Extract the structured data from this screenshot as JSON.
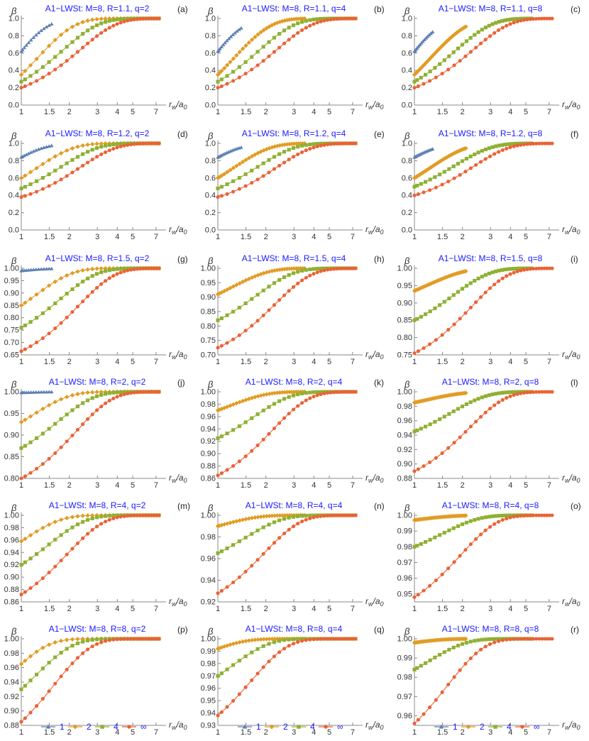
{
  "figure": {
    "x_axis_label": "r_w/a_0",
    "y_axis_label": "β",
    "legend": {
      "placement": "bottom",
      "entries": [
        {
          "label": "1",
          "color": "#5e81b5",
          "marker": "triangle"
        },
        {
          "label": "2",
          "color": "#e19c24",
          "marker": "diamond"
        },
        {
          "label": "4",
          "color": "#8fb032",
          "marker": "square"
        },
        {
          "label": "∞",
          "color": "#eb6235",
          "marker": "circle"
        }
      ]
    }
  },
  "chart_data": [
    {
      "type": "line",
      "panel": "(a)",
      "title": "A1−LWSt: M=8, R=1.1, q=2",
      "R": 1.1,
      "q": 2,
      "xscale": "log",
      "x_ticks": [
        1,
        1.5,
        2,
        3,
        4,
        5,
        7
      ],
      "xlim": [
        1,
        7.3
      ],
      "ylim": [
        0,
        1
      ],
      "y_ticks": [
        "0.0",
        "0.2",
        "0.4",
        "0.6",
        "0.8",
        "1.0"
      ]
    },
    {
      "type": "line",
      "panel": "(b)",
      "title": "A1−LWSt: M=8, R=1.1, q=4",
      "R": 1.1,
      "q": 4,
      "xscale": "log",
      "x_ticks": [
        1,
        1.5,
        2,
        3,
        4,
        5,
        7
      ],
      "xlim": [
        1,
        7.3
      ],
      "ylim": [
        0,
        1
      ],
      "y_ticks": [
        "0.0",
        "0.2",
        "0.4",
        "0.6",
        "0.8",
        "1.0"
      ]
    },
    {
      "type": "line",
      "panel": "(c)",
      "title": "A1−LWSt: M=8, R=1.1, q=8",
      "R": 1.1,
      "q": 8,
      "xscale": "log",
      "x_ticks": [
        1,
        1.5,
        2,
        3,
        4,
        5,
        7
      ],
      "xlim": [
        1,
        7.3
      ],
      "ylim": [
        0,
        1
      ],
      "y_ticks": [
        "0.0",
        "0.2",
        "0.4",
        "0.6",
        "0.8",
        "1.0"
      ]
    },
    {
      "type": "line",
      "panel": "(d)",
      "title": "A1−LWSt: M=8, R=1.2, q=2",
      "R": 1.2,
      "q": 2,
      "xscale": "log",
      "x_ticks": [
        1,
        1.5,
        2,
        3,
        4,
        5,
        7
      ],
      "xlim": [
        1,
        7.3
      ],
      "ylim": [
        0,
        1
      ],
      "y_ticks": [
        "0.0",
        "0.2",
        "0.4",
        "0.6",
        "0.8",
        "1.0"
      ]
    },
    {
      "type": "line",
      "panel": "(e)",
      "title": "A1−LWSt: M=8, R=1.2, q=4",
      "R": 1.2,
      "q": 4,
      "xscale": "log",
      "x_ticks": [
        1,
        1.5,
        2,
        3,
        4,
        5,
        7
      ],
      "xlim": [
        1,
        7.3
      ],
      "ylim": [
        0,
        1
      ],
      "y_ticks": [
        "0.0",
        "0.2",
        "0.4",
        "0.6",
        "0.8",
        "1.0"
      ]
    },
    {
      "type": "line",
      "panel": "(f)",
      "title": "A1−LWSt: M=8, R=1.2, q=8",
      "R": 1.2,
      "q": 8,
      "xscale": "log",
      "x_ticks": [
        1,
        1.5,
        2,
        3,
        4,
        5,
        7
      ],
      "xlim": [
        1,
        7.3
      ],
      "ylim": [
        0,
        1
      ],
      "y_ticks": [
        "0.0",
        "0.2",
        "0.4",
        "0.6",
        "0.8",
        "1.0"
      ]
    },
    {
      "type": "line",
      "panel": "(g)",
      "title": "A1−LWSt: M=8, R=1.5, q=2",
      "R": 1.5,
      "q": 2,
      "xscale": "log",
      "x_ticks": [
        1,
        1.5,
        2,
        3,
        4,
        5,
        7
      ],
      "xlim": [
        1,
        7.3
      ],
      "ylim": [
        0.65,
        1
      ],
      "y_ticks": [
        "0.65",
        "0.70",
        "0.75",
        "0.80",
        "0.85",
        "0.90",
        "0.95",
        "1.00"
      ]
    },
    {
      "type": "line",
      "panel": "(h)",
      "title": "A1−LWSt: M=8, R=1.5, q=4",
      "R": 1.5,
      "q": 4,
      "xscale": "log",
      "x_ticks": [
        1,
        1.5,
        2,
        3,
        4,
        5,
        7
      ],
      "xlim": [
        1,
        7.3
      ],
      "ylim": [
        0.7,
        1
      ],
      "y_ticks": [
        "0.70",
        "0.75",
        "0.80",
        "0.85",
        "0.90",
        "0.95",
        "1.00"
      ]
    },
    {
      "type": "line",
      "panel": "(i)",
      "title": "A1−LWSt: M=8, R=1.5, q=8",
      "R": 1.5,
      "q": 8,
      "xscale": "log",
      "x_ticks": [
        1,
        1.5,
        2,
        3,
        4,
        5,
        7
      ],
      "xlim": [
        1,
        7.3
      ],
      "ylim": [
        0.75,
        1
      ],
      "y_ticks": [
        "0.75",
        "0.80",
        "0.85",
        "0.90",
        "0.95",
        "1.00"
      ]
    },
    {
      "type": "line",
      "panel": "(j)",
      "title": "A1−LWSt: M=8, R=2, q=2",
      "R": 2,
      "q": 2,
      "xscale": "log",
      "x_ticks": [
        1,
        1.5,
        2,
        3,
        4,
        5,
        7
      ],
      "xlim": [
        1,
        7.3
      ],
      "ylim": [
        0.8,
        1
      ],
      "y_ticks": [
        "0.80",
        "0.85",
        "0.90",
        "0.95",
        "1.00"
      ]
    },
    {
      "type": "line",
      "panel": "(k)",
      "title": "A1−LWSt: M=8, R=2, q=4",
      "R": 2,
      "q": 4,
      "xscale": "log",
      "x_ticks": [
        1,
        1.5,
        2,
        3,
        4,
        5,
        7
      ],
      "xlim": [
        1,
        7.3
      ],
      "ylim": [
        0.86,
        1
      ],
      "y_ticks": [
        "0.86",
        "0.88",
        "0.90",
        "0.92",
        "0.94",
        "0.96",
        "0.98",
        "1.00"
      ]
    },
    {
      "type": "line",
      "panel": "(l)",
      "title": "A1−LWSt: M=8, R=2, q=8",
      "R": 2,
      "q": 8,
      "xscale": "log",
      "x_ticks": [
        1,
        1.5,
        2,
        3,
        4,
        5,
        7
      ],
      "xlim": [
        1,
        7.3
      ],
      "ylim": [
        0.88,
        1
      ],
      "y_ticks": [
        "0.88",
        "0.90",
        "0.92",
        "0.94",
        "0.96",
        "0.98",
        "1.00"
      ]
    },
    {
      "type": "line",
      "panel": "(m)",
      "title": "A1−LWSt: M=8, R=4, q=2",
      "R": 4,
      "q": 2,
      "xscale": "log",
      "x_ticks": [
        1,
        1.5,
        2,
        3,
        4,
        5,
        7
      ],
      "xlim": [
        1,
        7.3
      ],
      "ylim": [
        0.86,
        1
      ],
      "y_ticks": [
        "0.86",
        "0.88",
        "0.90",
        "0.92",
        "0.94",
        "0.96",
        "0.98",
        "1.00"
      ]
    },
    {
      "type": "line",
      "panel": "(n)",
      "title": "A1−LWSt: M=8, R=4, q=4",
      "R": 4,
      "q": 4,
      "xscale": "log",
      "x_ticks": [
        1,
        1.5,
        2,
        3,
        4,
        5,
        7
      ],
      "xlim": [
        1,
        7.3
      ],
      "ylim": [
        0.92,
        1
      ],
      "y_ticks": [
        "0.92",
        "0.94",
        "0.96",
        "0.98",
        "1.00"
      ]
    },
    {
      "type": "line",
      "panel": "(o)",
      "title": "A1−LWSt: M=8, R=4, q=8",
      "R": 4,
      "q": 8,
      "xscale": "log",
      "x_ticks": [
        1,
        1.5,
        2,
        3,
        4,
        5,
        7
      ],
      "xlim": [
        1,
        7.3
      ],
      "ylim": [
        0.945,
        1
      ],
      "y_ticks": [
        "0.95",
        "0.96",
        "0.97",
        "0.98",
        "0.99",
        "1.00"
      ]
    },
    {
      "type": "line",
      "panel": "(p)",
      "title": "A1−LWSt: M=8, R=8, q=2",
      "R": 8,
      "q": 2,
      "xscale": "log",
      "x_ticks": [
        1,
        1.5,
        2,
        3,
        4,
        5,
        7
      ],
      "xlim": [
        1,
        7.3
      ],
      "ylim": [
        0.88,
        1
      ],
      "y_ticks": [
        "0.88",
        "0.90",
        "0.92",
        "0.94",
        "0.96",
        "0.98",
        "1.00"
      ]
    },
    {
      "type": "line",
      "panel": "(q)",
      "title": "A1−LWSt: M=8, R=8, q=4",
      "R": 8,
      "q": 4,
      "xscale": "log",
      "x_ticks": [
        1,
        1.5,
        2,
        3,
        4,
        5,
        7
      ],
      "xlim": [
        1,
        7.3
      ],
      "ylim": [
        0.93,
        1
      ],
      "y_ticks": [
        "0.93",
        "0.94",
        "0.95",
        "0.96",
        "0.97",
        "0.98",
        "0.99",
        "1.00"
      ]
    },
    {
      "type": "line",
      "panel": "(r)",
      "title": "A1−LWSt: M=8, R=8, q=8",
      "R": 8,
      "q": 8,
      "xscale": "log",
      "x_ticks": [
        1,
        1.5,
        2,
        3,
        4,
        5,
        7
      ],
      "xlim": [
        1,
        7.3
      ],
      "ylim": [
        0.955,
        1
      ],
      "y_ticks": [
        "0.96",
        "0.97",
        "0.98",
        "0.99",
        "1.00"
      ]
    }
  ]
}
